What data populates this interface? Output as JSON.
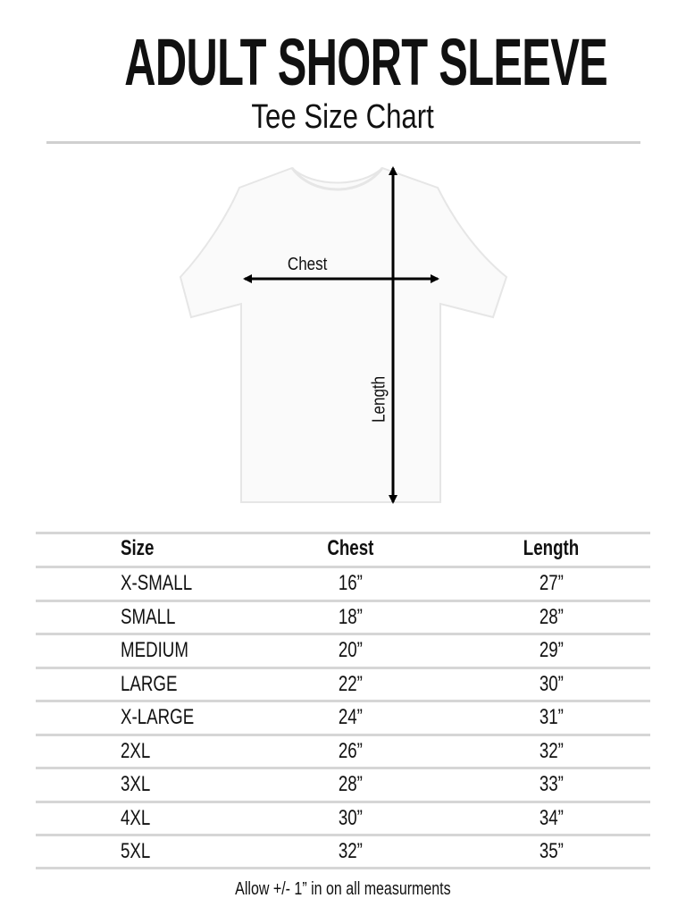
{
  "title": "ADULT SHORT SLEEVE",
  "subtitle": "Tee Size Chart",
  "diagram": {
    "chest_label": "Chest",
    "length_label": "Length"
  },
  "table": {
    "headers": [
      "Size",
      "Chest",
      "Length"
    ],
    "rows": [
      [
        "X-SMALL",
        "16”",
        "27”"
      ],
      [
        "SMALL",
        "18”",
        "28”"
      ],
      [
        "MEDIUM",
        "20”",
        "29”"
      ],
      [
        "LARGE",
        "22”",
        "30”"
      ],
      [
        "X-LARGE",
        "24”",
        "31”"
      ],
      [
        "2XL",
        "26”",
        "32”"
      ],
      [
        "3XL",
        "28”",
        "33”"
      ],
      [
        "4XL",
        "30”",
        "34”"
      ],
      [
        "5XL",
        "32”",
        "35”"
      ]
    ]
  },
  "footer": "Allow +/- 1” in on all measurments"
}
